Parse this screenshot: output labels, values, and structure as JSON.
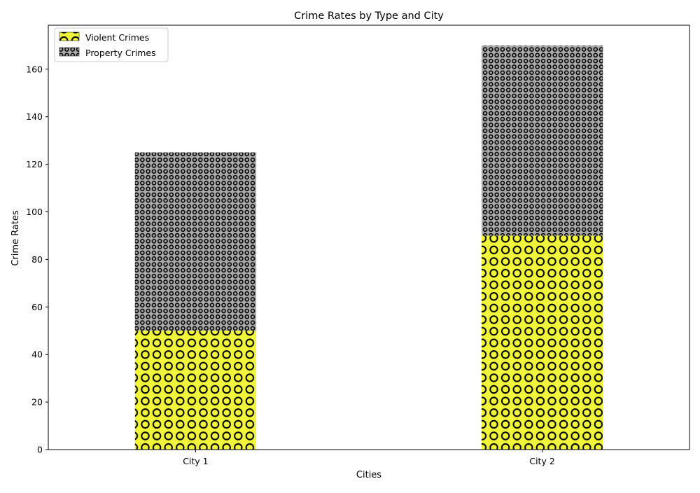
{
  "chart_data": {
    "type": "bar",
    "stacked": true,
    "title": "Crime Rates by Type and City",
    "xlabel": "Cities",
    "ylabel": "Crime Rates",
    "categories": [
      "City 1",
      "City 2"
    ],
    "ylim": [
      0,
      178.5
    ],
    "yticks": [
      0,
      20,
      40,
      60,
      80,
      100,
      120,
      140,
      160
    ],
    "grid": false,
    "legend_position": "top-left",
    "series": [
      {
        "name": "Violent Crimes",
        "values": [
          50,
          90
        ],
        "color": "#f0f53c",
        "hatch": "large-circles"
      },
      {
        "name": "Property Crimes",
        "values": [
          75,
          80
        ],
        "color": "#a9a9a9",
        "hatch": "small-circles"
      }
    ]
  }
}
